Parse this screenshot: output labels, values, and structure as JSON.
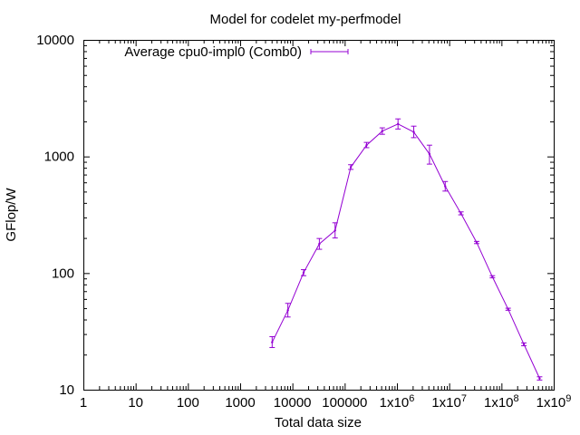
{
  "chart_data": {
    "type": "line",
    "title": "Model for codelet my-perfmodel",
    "xlabel": "Total data size",
    "ylabel": "GFlop/W",
    "x_scale": "log",
    "y_scale": "log",
    "xlim": [
      1,
      1000000000
    ],
    "ylim": [
      10,
      10000
    ],
    "grid": false,
    "legend_position": "top-left",
    "x_ticks": [
      {
        "value": 1,
        "label": "1"
      },
      {
        "value": 10,
        "label": "10"
      },
      {
        "value": 100,
        "label": "100"
      },
      {
        "value": 1000,
        "label": "1000"
      },
      {
        "value": 10000,
        "label": "10000"
      },
      {
        "value": 100000,
        "label": "100000"
      },
      {
        "value": 1000000,
        "label": "1x10^6"
      },
      {
        "value": 10000000,
        "label": "1x10^7"
      },
      {
        "value": 100000000,
        "label": "1x10^8"
      },
      {
        "value": 1000000000,
        "label": "1x10^9"
      }
    ],
    "y_ticks": [
      {
        "value": 10,
        "label": "10"
      },
      {
        "value": 100,
        "label": "100"
      },
      {
        "value": 1000,
        "label": "1000"
      },
      {
        "value": 10000,
        "label": "10000"
      }
    ],
    "series": [
      {
        "name": "Average cpu0-impl0 (Comb0)",
        "color": "#9400d3",
        "points": [
          {
            "x": 4096,
            "y": 25.5,
            "lo": 23,
            "hi": 28.5
          },
          {
            "x": 8192,
            "y": 48,
            "lo": 42,
            "hi": 55
          },
          {
            "x": 16384,
            "y": 101,
            "lo": 95,
            "hi": 107
          },
          {
            "x": 32768,
            "y": 178,
            "lo": 160,
            "hi": 198
          },
          {
            "x": 65536,
            "y": 232,
            "lo": 200,
            "hi": 270
          },
          {
            "x": 131072,
            "y": 810,
            "lo": 775,
            "hi": 850
          },
          {
            "x": 262144,
            "y": 1250,
            "lo": 1190,
            "hi": 1320
          },
          {
            "x": 524288,
            "y": 1650,
            "lo": 1550,
            "hi": 1760
          },
          {
            "x": 1048576,
            "y": 1900,
            "lo": 1720,
            "hi": 2100
          },
          {
            "x": 2097152,
            "y": 1620,
            "lo": 1450,
            "hi": 1820
          },
          {
            "x": 4194304,
            "y": 1050,
            "lo": 860,
            "hi": 1250
          },
          {
            "x": 8388608,
            "y": 555,
            "lo": 505,
            "hi": 610
          },
          {
            "x": 16777216,
            "y": 325,
            "lo": 316,
            "hi": 335
          },
          {
            "x": 33554432,
            "y": 183,
            "lo": 179,
            "hi": 187
          },
          {
            "x": 67108864,
            "y": 93,
            "lo": 91,
            "hi": 95
          },
          {
            "x": 134217728,
            "y": 49,
            "lo": 48,
            "hi": 50
          },
          {
            "x": 268435456,
            "y": 24.5,
            "lo": 23.8,
            "hi": 25.2
          },
          {
            "x": 536870912,
            "y": 12.5,
            "lo": 12.1,
            "hi": 12.9
          }
        ]
      }
    ]
  }
}
